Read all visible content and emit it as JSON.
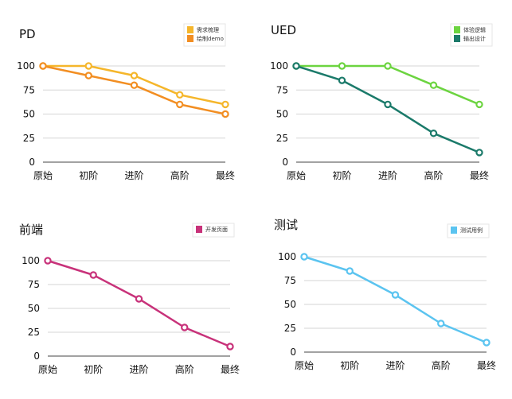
{
  "chart_data": [
    {
      "type": "line",
      "title": "PD",
      "categories": [
        "原始",
        "初阶",
        "进阶",
        "高阶",
        "最终"
      ],
      "ylim": [
        0,
        100
      ],
      "yticks": [
        0,
        25,
        50,
        75,
        100
      ],
      "grid": true,
      "legend_position": "top-right",
      "series": [
        {
          "name": "需求梳理",
          "color": "#F5B62B",
          "values": [
            100,
            100,
            90,
            70,
            60
          ]
        },
        {
          "name": "绘制demo",
          "color": "#F28E22",
          "values": [
            100,
            90,
            80,
            60,
            50
          ]
        }
      ]
    },
    {
      "type": "line",
      "title": "UED",
      "categories": [
        "原始",
        "初阶",
        "进阶",
        "高阶",
        "最终"
      ],
      "ylim": [
        0,
        100
      ],
      "yticks": [
        0,
        25,
        50,
        75,
        100
      ],
      "grid": true,
      "legend_position": "top-right",
      "series": [
        {
          "name": "体验逻辑",
          "color": "#6CD440",
          "values": [
            100,
            100,
            100,
            80,
            60
          ]
        },
        {
          "name": "输出设计",
          "color": "#1B7A6A",
          "values": [
            100,
            85,
            60,
            30,
            10
          ]
        }
      ]
    },
    {
      "type": "line",
      "title": "前端",
      "categories": [
        "原始",
        "初阶",
        "进阶",
        "高阶",
        "最终"
      ],
      "ylim": [
        0,
        100
      ],
      "yticks": [
        0,
        25,
        50,
        75,
        100
      ],
      "grid": true,
      "legend_position": "top-right",
      "series": [
        {
          "name": "开发页面",
          "color": "#C8327A",
          "values": [
            100,
            85,
            60,
            30,
            10
          ]
        }
      ]
    },
    {
      "type": "line",
      "title": "测试",
      "categories": [
        "原始",
        "初阶",
        "进阶",
        "高阶",
        "最终"
      ],
      "ylim": [
        0,
        100
      ],
      "yticks": [
        0,
        25,
        50,
        75,
        100
      ],
      "grid": true,
      "legend_position": "top-right",
      "series": [
        {
          "name": "测试用例",
          "color": "#5BC4F0",
          "values": [
            100,
            85,
            60,
            30,
            10
          ]
        }
      ]
    }
  ]
}
